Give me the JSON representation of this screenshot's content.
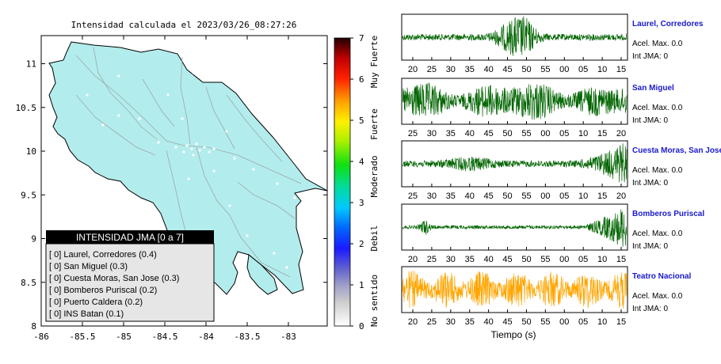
{
  "map": {
    "title": "Intensidad calculada el 2023/03/26_08:27:26",
    "lat_ticks": [
      "11",
      "10.5",
      "10",
      "9.5",
      "9",
      "8.5",
      "8"
    ],
    "lon_ticks": [
      "-86",
      "-85.5",
      "-85",
      "-84.5",
      "-84",
      "-83.5",
      "-83"
    ],
    "land_color": "#b3ecec",
    "legend": {
      "title": "INTENSIDAD JMA [0 a 7]",
      "items": [
        "[ 0]  Laurel, Corredores (0.4)",
        "[ 0]  San Miguel (0.3)",
        "[ 0]  Cuesta Moras, San Jose (0.3)",
        "[ 0]  Bomberos Puriscal (0.2)",
        "[ 0]  Puerto Caldera (0.2)",
        "[ 0]  INS Batan (0.1)"
      ]
    }
  },
  "colorbar": {
    "ticks": [
      "0",
      "1",
      "2",
      "3",
      "4",
      "5",
      "6",
      "7"
    ],
    "labels": [
      "No sentido",
      "Debil",
      "Moderado",
      "Fuerte",
      "Muy Fuerte"
    ]
  },
  "traces": [
    {
      "station": "Laurel, Corredores",
      "acel": "Acel. Max. 0.0",
      "int": "Int JMA: 0",
      "color": "#006400",
      "ticks": [
        "20",
        "25",
        "30",
        "35",
        "40",
        "45",
        "50",
        "55",
        "00",
        "05",
        "10",
        "15"
      ]
    },
    {
      "station": "San Miguel",
      "acel": "Acel. Max. 0.0",
      "int": "Int JMA: 0",
      "color": "#006400",
      "ticks": [
        "25",
        "30",
        "35",
        "40",
        "45",
        "50",
        "55",
        "00",
        "05",
        "10",
        "15",
        "20"
      ]
    },
    {
      "station": "Cuesta Moras, San Jose",
      "acel": "Acel. Max. 0.0",
      "int": "Int JMA: 0",
      "color": "#006400",
      "ticks": [
        "25",
        "30",
        "35",
        "40",
        "45",
        "50",
        "55",
        "00",
        "05",
        "10",
        "15",
        "20"
      ]
    },
    {
      "station": "Bomberos Puriscal",
      "acel": "Acel. Max. 0.0",
      "int": "Int JMA: 0",
      "color": "#006400",
      "ticks": [
        "20",
        "25",
        "30",
        "35",
        "40",
        "45",
        "50",
        "55",
        "00",
        "05",
        "10",
        "15"
      ]
    },
    {
      "station": "Teatro Nacional",
      "acel": "Acel. Max. 0.0",
      "int": "Int JMA: 0",
      "color": "#ffa500",
      "ticks": [
        "20",
        "25",
        "30",
        "35",
        "40",
        "45",
        "50",
        "55",
        "00",
        "05",
        "10",
        "15"
      ]
    }
  ],
  "xlabel": "Tiempo (s)",
  "chart_data": [
    {
      "type": "heatmap",
      "title": "Intensidad calculada el 2023/03/26_08:27:26",
      "xlim": [
        -86,
        -82.5
      ],
      "ylim": [
        8,
        11.3
      ],
      "colorbar_range": [
        0,
        7
      ],
      "series": [
        {
          "name": "Laurel, Corredores",
          "intensity": 0.4
        },
        {
          "name": "San Miguel",
          "intensity": 0.3
        },
        {
          "name": "Cuesta Moras, San Jose",
          "intensity": 0.3
        },
        {
          "name": "Bomberos Puriscal",
          "intensity": 0.2
        },
        {
          "name": "Puerto Caldera",
          "intensity": 0.2
        },
        {
          "name": "INS Batan",
          "intensity": 0.1
        }
      ]
    },
    {
      "type": "line",
      "xlabel": "Tiempo (s)",
      "series": [
        {
          "name": "Laurel, Corredores",
          "acel_max": 0.0,
          "int_jma": 0
        },
        {
          "name": "San Miguel",
          "acel_max": 0.0,
          "int_jma": 0
        },
        {
          "name": "Cuesta Moras, San Jose",
          "acel_max": 0.0,
          "int_jma": 0
        },
        {
          "name": "Bomberos Puriscal",
          "acel_max": 0.0,
          "int_jma": 0
        },
        {
          "name": "Teatro Nacional",
          "acel_max": 0.0,
          "int_jma": 0
        }
      ]
    }
  ]
}
